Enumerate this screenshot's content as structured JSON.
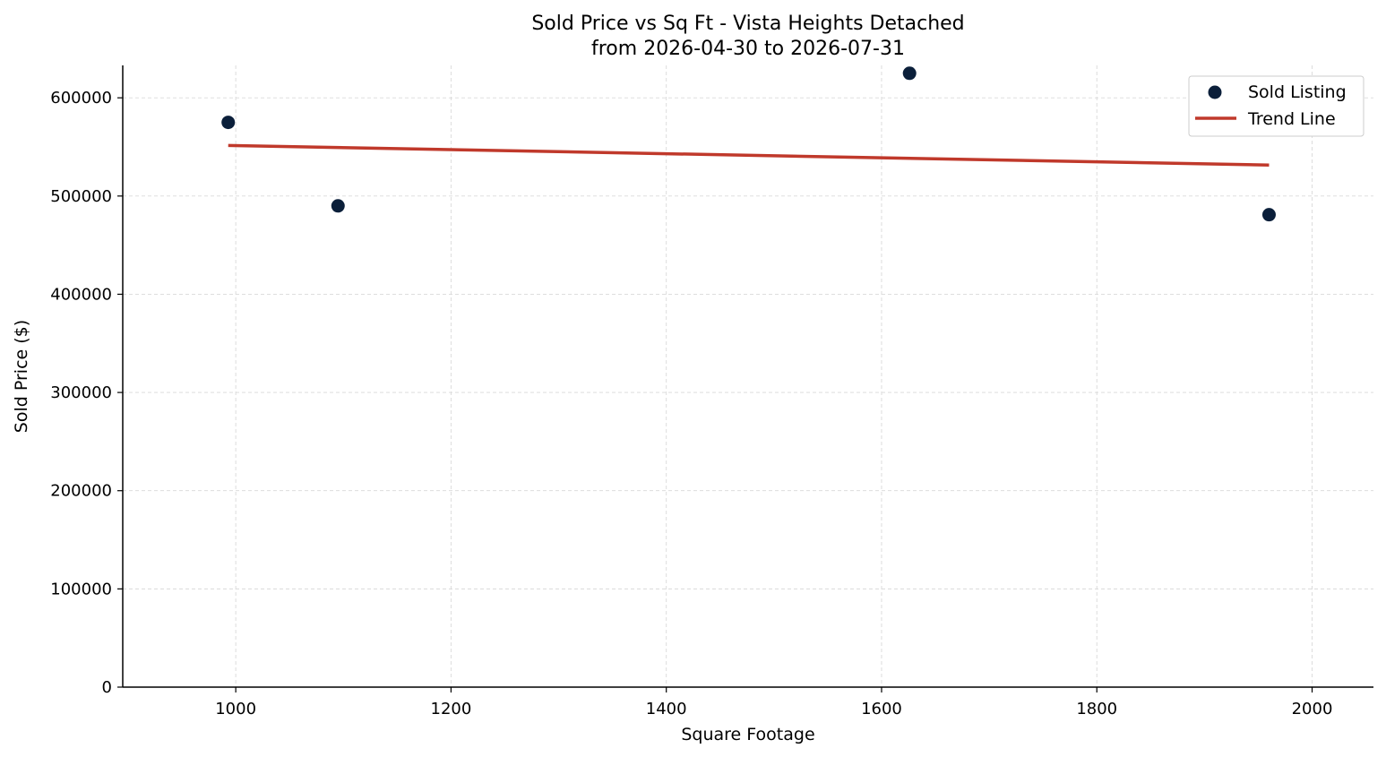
{
  "chart_data": {
    "type": "scatter",
    "title": "Sold Price vs Sq Ft - Vista Heights Detached",
    "subtitle": "from 2026-04-30 to 2026-07-31",
    "xlabel": "Square Footage",
    "ylabel": "Sold Price ($)",
    "xlim": [
      895,
      2057
    ],
    "ylim": [
      0,
      633000
    ],
    "xticks": [
      1000,
      1200,
      1400,
      1600,
      1800,
      2000
    ],
    "yticks": [
      0,
      100000,
      200000,
      300000,
      400000,
      500000,
      600000
    ],
    "xtick_labels": [
      "1000",
      "1200",
      "1400",
      "1600",
      "1800",
      "2000"
    ],
    "ytick_labels": [
      "0",
      "100000",
      "200000",
      "300000",
      "400000",
      "500000",
      "600000"
    ],
    "grid": true,
    "legend_position": "top-right",
    "series": [
      {
        "name": "Sold Listing",
        "kind": "scatter",
        "color": "#0b1f3a",
        "points": [
          {
            "x": 993,
            "y": 575000
          },
          {
            "x": 1095,
            "y": 490000
          },
          {
            "x": 1626,
            "y": 625000
          },
          {
            "x": 1960,
            "y": 481000
          }
        ]
      },
      {
        "name": "Trend Line",
        "kind": "line",
        "color": "#c0392b",
        "points": [
          {
            "x": 993,
            "y": 551500
          },
          {
            "x": 1960,
            "y": 531500
          }
        ]
      }
    ]
  }
}
